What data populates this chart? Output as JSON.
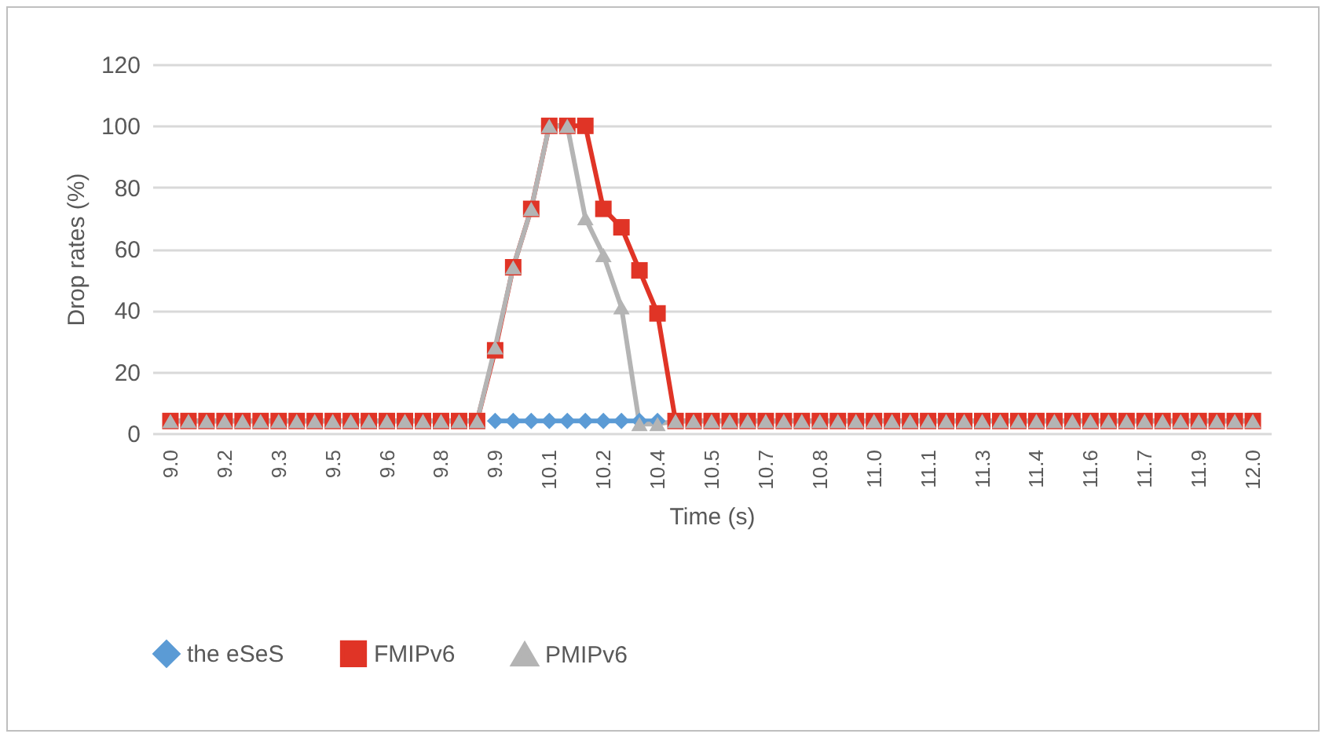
{
  "chart_data": {
    "type": "line",
    "xlabel": "Time (s)",
    "ylabel": "Drop rates (%)",
    "categories": [
      "9.0",
      null,
      null,
      "9.2",
      null,
      null,
      "9.3",
      null,
      null,
      "9.5",
      null,
      null,
      "9.6",
      null,
      null,
      "9.8",
      null,
      null,
      "9.9",
      null,
      null,
      "10.1",
      null,
      null,
      "10.2",
      null,
      null,
      "10.4",
      null,
      null,
      "10.5",
      null,
      null,
      "10.7",
      null,
      null,
      "10.8",
      null,
      null,
      "11.0",
      null,
      null,
      "11.1",
      null,
      null,
      "11.3",
      null,
      null,
      "11.4",
      null,
      null,
      "11.6",
      null,
      null,
      "11.7",
      null,
      null,
      "11.9",
      null,
      null,
      "12.0"
    ],
    "series": [
      {
        "name": "the eSeS",
        "color": "#5b9bd5",
        "marker": "diamond",
        "values": [
          null,
          null,
          null,
          null,
          null,
          null,
          null,
          null,
          null,
          null,
          null,
          null,
          null,
          null,
          null,
          null,
          null,
          null,
          4,
          4,
          4,
          4,
          4,
          4,
          4,
          4,
          4,
          4,
          null,
          null,
          null,
          null,
          null,
          null,
          null,
          null,
          null,
          null,
          null,
          null,
          null,
          null,
          null,
          null,
          null,
          null,
          null,
          null,
          null,
          null,
          null,
          null,
          null,
          null,
          null,
          null,
          null,
          null,
          null,
          null,
          null
        ]
      },
      {
        "name": "FMIPv6",
        "color": "#e03426",
        "marker": "square",
        "values": [
          4,
          4,
          4,
          4,
          4,
          4,
          4,
          4,
          4,
          4,
          4,
          4,
          4,
          4,
          4,
          4,
          4,
          4,
          27,
          54,
          73,
          100,
          100,
          100,
          73,
          67,
          53,
          39,
          4,
          4,
          4,
          4,
          4,
          4,
          4,
          4,
          4,
          4,
          4,
          4,
          4,
          4,
          4,
          4,
          4,
          4,
          4,
          4,
          4,
          4,
          4,
          4,
          4,
          4,
          4,
          4,
          4,
          4,
          4,
          4,
          4
        ]
      },
      {
        "name": "PMIPv6",
        "color": "#b4b4b4",
        "marker": "triangle",
        "values": [
          4,
          4,
          4,
          4,
          4,
          4,
          4,
          4,
          4,
          4,
          4,
          4,
          4,
          4,
          4,
          4,
          4,
          4,
          28,
          54,
          73,
          100,
          100,
          70,
          58,
          41,
          3,
          3,
          4,
          4,
          4,
          4,
          4,
          4,
          4,
          4,
          4,
          4,
          4,
          4,
          4,
          4,
          4,
          4,
          4,
          4,
          4,
          4,
          4,
          4,
          4,
          4,
          4,
          4,
          4,
          4,
          4,
          4,
          4,
          4,
          4
        ]
      }
    ],
    "ylim": [
      0,
      120
    ],
    "yticks": [
      0,
      20,
      40,
      60,
      80,
      100,
      120
    ],
    "grid": "y",
    "legend": "bottom",
    "line_style": "solid"
  }
}
